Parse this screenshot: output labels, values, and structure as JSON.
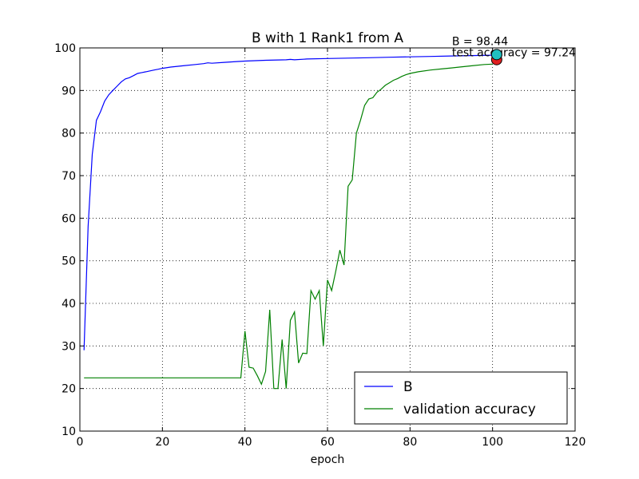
{
  "chart_data": {
    "type": "line",
    "title": "B with 1 Rank1 from A",
    "xlabel": "epoch",
    "ylabel": "",
    "xlim": [
      0,
      120
    ],
    "ylim": [
      10,
      100
    ],
    "xticks": [
      0,
      20,
      40,
      60,
      80,
      100,
      120
    ],
    "yticks": [
      10,
      20,
      30,
      40,
      50,
      60,
      70,
      80,
      90,
      100
    ],
    "grid": true,
    "legend_position": "lower-right",
    "series": [
      {
        "name": "B",
        "color": "#0000ff",
        "x": [
          1,
          2,
          3,
          4,
          5,
          6,
          7,
          8,
          9,
          10,
          11,
          12,
          13,
          14,
          15,
          16,
          17,
          18,
          19,
          20,
          22,
          25,
          28,
          30,
          31,
          32,
          35,
          38,
          40,
          45,
          50,
          51,
          52,
          55,
          60,
          65,
          70,
          75,
          80,
          85,
          90,
          95,
          100
        ],
        "y": [
          29,
          58,
          75,
          83,
          85,
          87.5,
          89,
          90,
          91,
          92,
          92.7,
          93,
          93.5,
          94,
          94.2,
          94.4,
          94.6,
          94.8,
          95,
          95.2,
          95.5,
          95.8,
          96.1,
          96.3,
          96.5,
          96.4,
          96.6,
          96.8,
          96.9,
          97.1,
          97.2,
          97.3,
          97.2,
          97.4,
          97.5,
          97.6,
          97.7,
          97.8,
          97.9,
          98,
          98.1,
          98.2,
          98.3
        ]
      },
      {
        "name": "validation accuracy",
        "color": "#008000",
        "x": [
          1,
          10,
          20,
          30,
          39,
          40,
          41,
          42,
          43,
          44,
          45,
          46,
          47,
          48,
          49,
          50,
          51,
          52,
          53,
          54,
          55,
          56,
          57,
          58,
          59,
          60,
          61,
          62,
          63,
          64,
          65,
          66,
          67,
          68,
          69,
          70,
          71,
          72,
          73,
          74,
          75,
          76,
          77,
          78,
          79,
          80,
          82,
          85,
          88,
          90,
          92,
          95,
          98,
          100
        ],
        "y": [
          22.5,
          22.5,
          22.5,
          22.5,
          22.5,
          33.5,
          25,
          24.8,
          23,
          21,
          24,
          38.5,
          20,
          20,
          31.5,
          20,
          36,
          38,
          26,
          28.3,
          28.2,
          43,
          41,
          43,
          30,
          45.5,
          43,
          47.5,
          52.5,
          49,
          67.5,
          69,
          80,
          83,
          86.5,
          88,
          88.3,
          89.6,
          90.3,
          91.2,
          91.8,
          92.4,
          92.8,
          93.3,
          93.7,
          94,
          94.4,
          94.8,
          95.1,
          95.3,
          95.5,
          95.8,
          96.1,
          96.2
        ]
      }
    ],
    "markers": [
      {
        "label": "B = 98.44",
        "x": 101,
        "y": 98.44,
        "color": "#20c0c0"
      },
      {
        "label": "test accuracy = 97.24",
        "x": 101,
        "y": 97.24,
        "color": "#e02020"
      }
    ]
  }
}
